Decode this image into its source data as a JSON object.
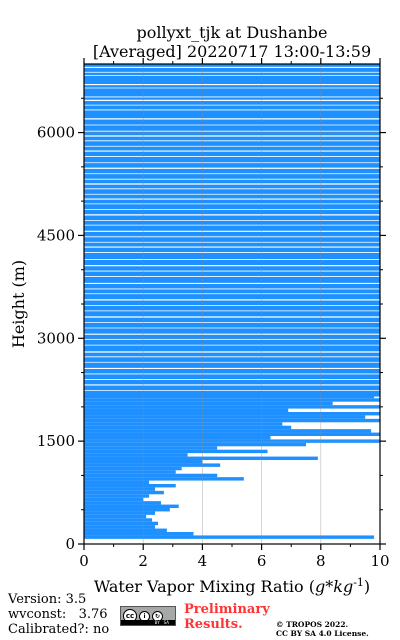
{
  "chart_data": {
    "type": "bar",
    "orientation": "horizontal",
    "title": "pollyxt_tjk at Dushanbe",
    "subtitle": "[Averaged] 20220717 13:00-13:59",
    "xlabel": "Water Vapor Mixing Ratio ($g*kg^{-1}$)",
    "ylabel": "Height (m)",
    "xlim": [
      0,
      10
    ],
    "ylim": [
      0,
      7000
    ],
    "x_ticks": [
      0,
      2,
      4,
      6,
      8,
      10
    ],
    "y_ticks": [
      0,
      1500,
      3000,
      4500,
      6000
    ],
    "grid": true,
    "color": "#1e90ff",
    "series": [
      {
        "heights_m": [
          100,
          150,
          200,
          250,
          300,
          350,
          400,
          450,
          500,
          550,
          600,
          650,
          700,
          750,
          800,
          850,
          900,
          950,
          1000,
          1050,
          1100,
          1150,
          1200,
          1250,
          1300,
          1350,
          1400,
          1450,
          1500,
          1550,
          1600,
          1650,
          1700,
          1750,
          1800,
          1850,
          1900,
          1950,
          2000,
          2050,
          2100,
          2150
        ],
        "wvmr_g_per_kg": [
          9.8,
          3.7,
          2.8,
          2.4,
          2.5,
          2.3,
          2.1,
          2.4,
          2.9,
          3.2,
          2.6,
          2.0,
          2.2,
          2.7,
          2.4,
          3.1,
          2.2,
          5.4,
          4.5,
          3.1,
          3.3,
          4.6,
          4.0,
          7.9,
          3.5,
          6.2,
          4.5,
          7.5,
          10.0,
          6.3,
          10.0,
          9.7,
          7.0,
          6.7,
          10.0,
          9.5,
          10.0,
          6.9,
          10.0,
          8.4,
          10.0,
          9.8
        ]
      }
    ],
    "saturated_above_m": 2150
  },
  "meta": {
    "version_line": "Version: 3.5",
    "wvconst_line": "wvconst:   3.76",
    "calibrated_line": "Calibrated?: no",
    "cc_text": "cc",
    "by_text": "BY",
    "sa_text": "SA",
    "preliminary_line1": "Preliminary",
    "preliminary_line2": "Results.",
    "copyright_line1": "© TROPOS 2022.",
    "copyright_line2": "CC BY SA 4.0 License."
  }
}
